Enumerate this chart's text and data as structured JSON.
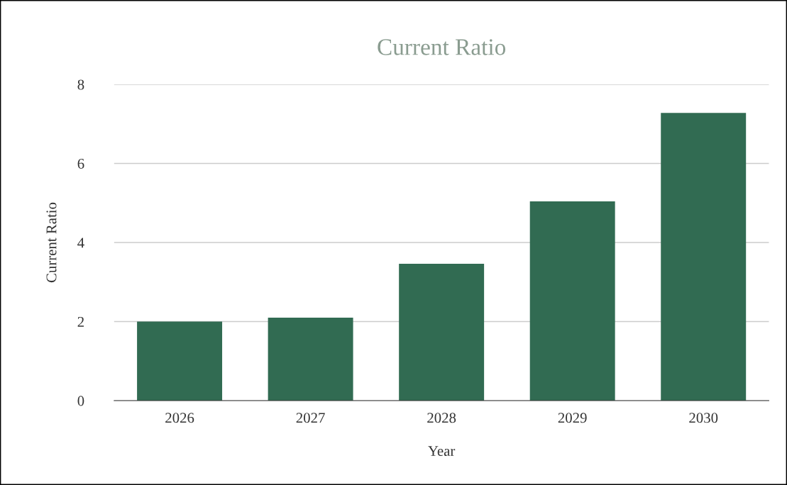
{
  "chart_data": {
    "type": "bar",
    "title": "Current Ratio",
    "xlabel": "Year",
    "ylabel": "Current Ratio",
    "categories": [
      "2026",
      "2027",
      "2028",
      "2029",
      "2030"
    ],
    "values": [
      2.0,
      2.1,
      3.46,
      5.04,
      7.28
    ],
    "color": "#316b52",
    "ylim": [
      0,
      8
    ],
    "yticks": [
      0,
      2,
      4,
      6,
      8
    ],
    "grid": "y"
  }
}
